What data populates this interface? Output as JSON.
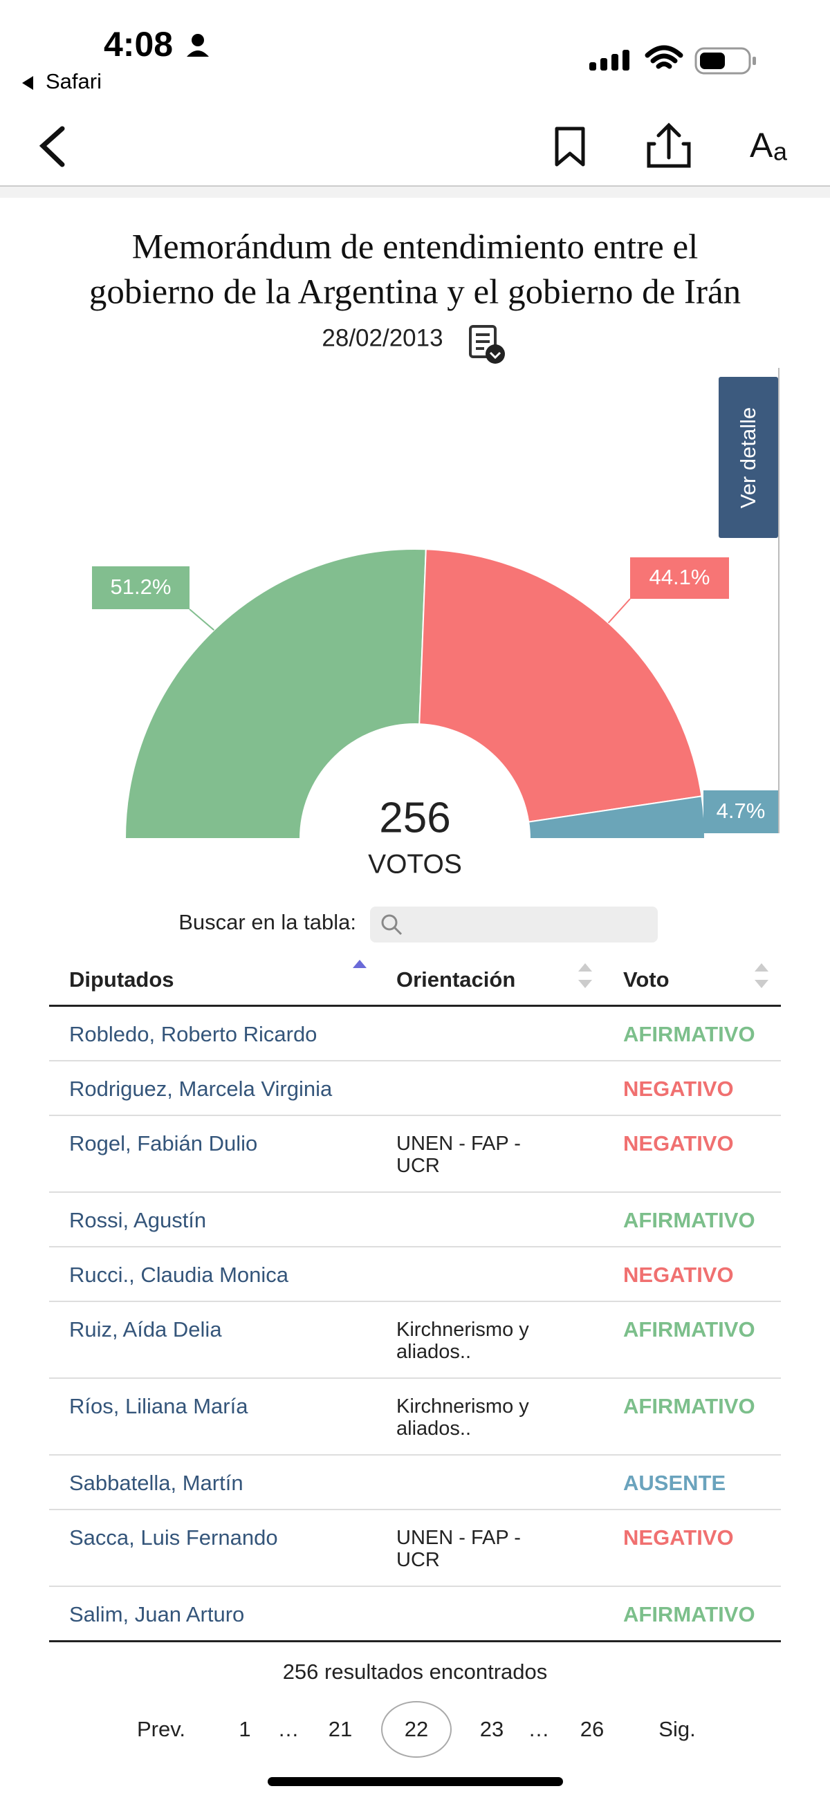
{
  "status_bar": {
    "time": "4:08",
    "back_app": "Safari"
  },
  "header": {
    "title_lines": [
      "Memorándum de entendimiento entre el",
      "gobierno de la Argentina y el gobierno de Irán"
    ],
    "date": "28/02/2013"
  },
  "side_button": "Ver detalle",
  "chart_data": {
    "type": "pie",
    "half": true,
    "values": [
      51.2,
      44.1,
      4.7
    ],
    "value_labels": [
      "51.2%",
      "44.1%",
      "4.7%"
    ],
    "colors": [
      "#82be8f",
      "#f77575",
      "#6ba5b8"
    ],
    "total": 256,
    "total_label": "VOTOS"
  },
  "search": {
    "label": "Buscar en la tabla:"
  },
  "table": {
    "headers": [
      "Diputados",
      "Orientación",
      "Voto"
    ],
    "rows": [
      {
        "name": "Robledo, Roberto Ricardo",
        "vote": "AFIRMATIVO",
        "color": "#7cbf8b"
      },
      {
        "name": "Rodriguez, Marcela Virginia",
        "vote": "NEGATIVO",
        "color": "#f07070"
      },
      {
        "name": "Rogel, Fabián Dulio",
        "orientation": "UNEN - FAP - UCR",
        "vote": "NEGATIVO",
        "color": "#f07070"
      },
      {
        "name": "Rossi, Agustín",
        "vote": "AFIRMATIVO",
        "color": "#7cbf8b"
      },
      {
        "name": "Rucci., Claudia Monica",
        "vote": "NEGATIVO",
        "color": "#f07070"
      },
      {
        "name": "Ruiz, Aída Delia",
        "orientation": "Kirchnerismo y aliados..",
        "vote": "AFIRMATIVO",
        "color": "#7cbf8b"
      },
      {
        "name": "Ríos, Liliana María",
        "orientation": "Kirchnerismo y aliados..",
        "vote": "AFIRMATIVO",
        "color": "#7cbf8b"
      },
      {
        "name": "Sabbatella, Martín",
        "vote": "AUSENTE",
        "color": "#6aa3bd"
      },
      {
        "name": "Sacca, Luis Fernando",
        "orientation": "UNEN - FAP - UCR",
        "vote": "NEGATIVO",
        "color": "#f07070"
      },
      {
        "name": "Salim, Juan Arturo",
        "vote": "AFIRMATIVO",
        "color": "#7cbf8b"
      }
    ]
  },
  "footer": {
    "results": "256 resultados encontrados",
    "pages": [
      {
        "label": "Prev."
      },
      {
        "label": "1"
      },
      {
        "label": "…"
      },
      {
        "label": "21"
      },
      {
        "label": "22",
        "current": true
      },
      {
        "label": "23"
      },
      {
        "label": "…"
      },
      {
        "label": "26"
      },
      {
        "label": "Sig."
      }
    ]
  }
}
